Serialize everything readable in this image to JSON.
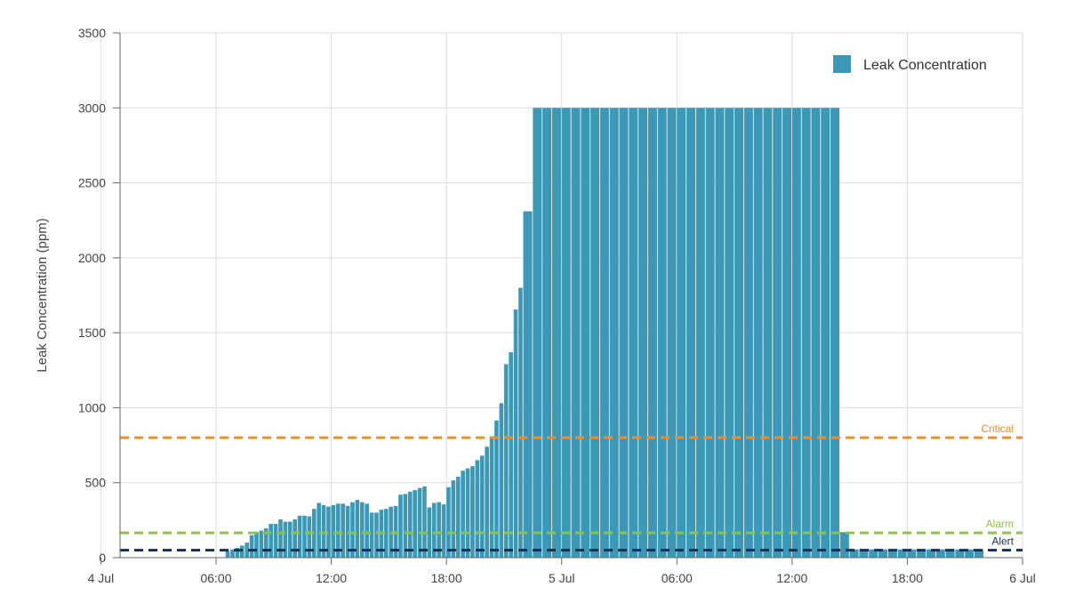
{
  "chart_data": {
    "type": "bar",
    "title": "",
    "xlabel": "",
    "ylabel": "Leak Concentration (ppm)",
    "ylim": [
      0,
      3500
    ],
    "yticks": [
      0,
      500,
      1000,
      1500,
      2000,
      2500,
      3000,
      3500
    ],
    "x_axis": {
      "type": "time",
      "range": [
        "4 Jul 01:00",
        "6 Jul 00:00"
      ],
      "ticks": [
        {
          "time": "4 Jul 00:00",
          "label": "4 Jul"
        },
        {
          "time": "4 Jul 06:00",
          "label": "06:00"
        },
        {
          "time": "4 Jul 12:00",
          "label": "12:00"
        },
        {
          "time": "4 Jul 18:00",
          "label": "18:00"
        },
        {
          "time": "5 Jul 00:00",
          "label": "5 Jul"
        },
        {
          "time": "5 Jul 06:00",
          "label": "06:00"
        },
        {
          "time": "5 Jul 12:00",
          "label": "12:00"
        },
        {
          "time": "5 Jul 18:00",
          "label": "18:00"
        },
        {
          "time": "6 Jul 00:00",
          "label": "6 Jul"
        }
      ]
    },
    "grid": true,
    "legend": {
      "position": "top-right"
    },
    "series": [
      {
        "name": "Leak Concentration",
        "color": "#3b98b6",
        "points": [
          [
            "4 Jul 06:30",
            45
          ],
          [
            "4 Jul 06:45",
            55
          ],
          [
            "4 Jul 07:00",
            65
          ],
          [
            "4 Jul 07:15",
            80
          ],
          [
            "4 Jul 07:30",
            100
          ],
          [
            "4 Jul 07:45",
            150
          ],
          [
            "4 Jul 08:00",
            170
          ],
          [
            "4 Jul 08:15",
            180
          ],
          [
            "4 Jul 08:30",
            195
          ],
          [
            "4 Jul 08:45",
            225
          ],
          [
            "4 Jul 09:00",
            225
          ],
          [
            "4 Jul 09:15",
            255
          ],
          [
            "4 Jul 09:30",
            240
          ],
          [
            "4 Jul 09:45",
            240
          ],
          [
            "4 Jul 10:00",
            255
          ],
          [
            "4 Jul 10:15",
            280
          ],
          [
            "4 Jul 10:30",
            280
          ],
          [
            "4 Jul 10:45",
            275
          ],
          [
            "4 Jul 11:00",
            325
          ],
          [
            "4 Jul 11:15",
            365
          ],
          [
            "4 Jul 11:30",
            350
          ],
          [
            "4 Jul 11:45",
            340
          ],
          [
            "4 Jul 12:00",
            350
          ],
          [
            "4 Jul 12:15",
            360
          ],
          [
            "4 Jul 12:30",
            360
          ],
          [
            "4 Jul 12:45",
            345
          ],
          [
            "4 Jul 13:00",
            370
          ],
          [
            "4 Jul 13:15",
            385
          ],
          [
            "4 Jul 13:30",
            370
          ],
          [
            "4 Jul 13:45",
            360
          ],
          [
            "4 Jul 14:00",
            300
          ],
          [
            "4 Jul 14:15",
            300
          ],
          [
            "4 Jul 14:30",
            320
          ],
          [
            "4 Jul 14:45",
            325
          ],
          [
            "4 Jul 15:00",
            340
          ],
          [
            "4 Jul 15:15",
            345
          ],
          [
            "4 Jul 15:30",
            420
          ],
          [
            "4 Jul 15:45",
            425
          ],
          [
            "4 Jul 16:00",
            440
          ],
          [
            "4 Jul 16:15",
            450
          ],
          [
            "4 Jul 16:30",
            465
          ],
          [
            "4 Jul 16:45",
            475
          ],
          [
            "4 Jul 17:00",
            335
          ],
          [
            "4 Jul 17:15",
            365
          ],
          [
            "4 Jul 17:30",
            370
          ],
          [
            "4 Jul 17:45",
            355
          ],
          [
            "4 Jul 18:00",
            470
          ],
          [
            "4 Jul 18:15",
            515
          ],
          [
            "4 Jul 18:30",
            540
          ],
          [
            "4 Jul 18:45",
            580
          ],
          [
            "4 Jul 19:00",
            595
          ],
          [
            "4 Jul 19:15",
            610
          ],
          [
            "4 Jul 19:30",
            650
          ],
          [
            "4 Jul 19:45",
            680
          ],
          [
            "4 Jul 20:00",
            740
          ],
          [
            "4 Jul 20:15",
            810
          ],
          [
            "4 Jul 20:30",
            915
          ],
          [
            "4 Jul 20:45",
            1030
          ],
          [
            "4 Jul 21:00",
            1290
          ],
          [
            "4 Jul 21:15",
            1370
          ],
          [
            "4 Jul 21:30",
            1655
          ],
          [
            "4 Jul 21:45",
            1800
          ],
          [
            "4 Jul 22:00",
            2310
          ],
          [
            "4 Jul 22:30",
            3000
          ],
          [
            "4 Jul 23:00",
            3000
          ],
          [
            "4 Jul 23:30",
            3000
          ],
          [
            "5 Jul 00:00",
            3000
          ],
          [
            "5 Jul 00:30",
            3000
          ],
          [
            "5 Jul 01:00",
            3000
          ],
          [
            "5 Jul 01:30",
            3000
          ],
          [
            "5 Jul 02:00",
            3000
          ],
          [
            "5 Jul 02:30",
            3000
          ],
          [
            "5 Jul 03:00",
            3000
          ],
          [
            "5 Jul 03:30",
            3000
          ],
          [
            "5 Jul 04:00",
            3000
          ],
          [
            "5 Jul 04:30",
            3000
          ],
          [
            "5 Jul 05:00",
            3000
          ],
          [
            "5 Jul 05:30",
            3000
          ],
          [
            "5 Jul 06:00",
            3000
          ],
          [
            "5 Jul 06:30",
            3000
          ],
          [
            "5 Jul 07:00",
            3000
          ],
          [
            "5 Jul 07:30",
            3000
          ],
          [
            "5 Jul 08:00",
            3000
          ],
          [
            "5 Jul 08:30",
            3000
          ],
          [
            "5 Jul 09:00",
            3000
          ],
          [
            "5 Jul 09:30",
            3000
          ],
          [
            "5 Jul 10:00",
            3000
          ],
          [
            "5 Jul 10:30",
            3000
          ],
          [
            "5 Jul 11:00",
            3000
          ],
          [
            "5 Jul 11:30",
            3000
          ],
          [
            "5 Jul 12:00",
            3000
          ],
          [
            "5 Jul 12:30",
            3000
          ],
          [
            "5 Jul 13:00",
            3000
          ],
          [
            "5 Jul 13:30",
            3000
          ],
          [
            "5 Jul 14:00",
            3000
          ],
          [
            "5 Jul 14:30",
            170
          ],
          [
            "5 Jul 15:00",
            55
          ],
          [
            "5 Jul 15:30",
            55
          ],
          [
            "5 Jul 16:00",
            55
          ],
          [
            "5 Jul 16:30",
            55
          ],
          [
            "5 Jul 17:00",
            55
          ],
          [
            "5 Jul 17:30",
            55
          ],
          [
            "5 Jul 18:00",
            55
          ],
          [
            "5 Jul 18:30",
            55
          ],
          [
            "5 Jul 19:00",
            55
          ],
          [
            "5 Jul 19:30",
            55
          ],
          [
            "5 Jul 20:00",
            55
          ],
          [
            "5 Jul 20:30",
            55
          ],
          [
            "5 Jul 21:00",
            55
          ],
          [
            "5 Jul 21:30",
            55
          ]
        ]
      }
    ],
    "thresholds": [
      {
        "label": "Critical",
        "value": 800,
        "color": "#f28c28"
      },
      {
        "label": "Alarm",
        "value": 165,
        "color": "#8cc63f"
      },
      {
        "label": "Alert",
        "value": 50,
        "color": "#14305a"
      }
    ]
  }
}
